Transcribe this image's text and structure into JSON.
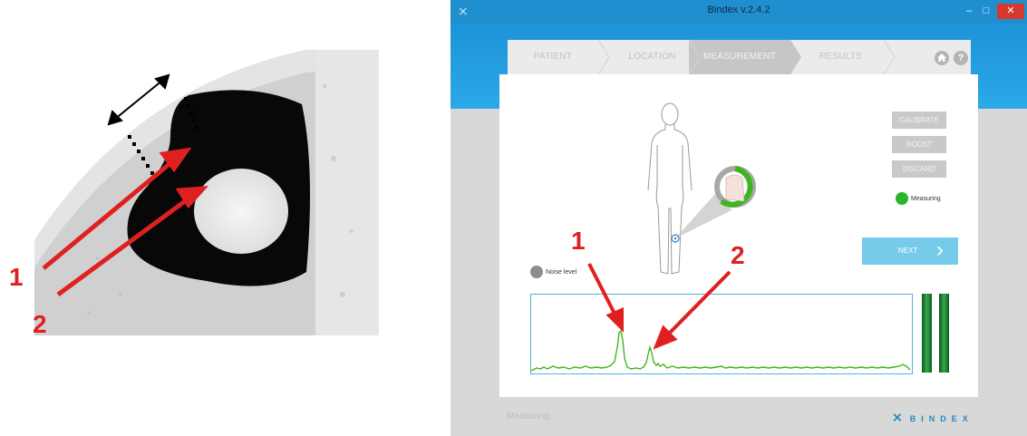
{
  "figure": {
    "label_1": "1",
    "label_2": "2"
  },
  "window": {
    "title": "Bindex v.2.4.2",
    "min_glyph": "–",
    "max_glyph": "□",
    "close_glyph": "✕"
  },
  "steps": [
    "PATIENT",
    "LOCATION",
    "MEASUREMENT",
    "RESULTS"
  ],
  "active_step": "MEASUREMENT",
  "toolbar": {
    "home_icon": "home-icon",
    "help_glyph": "?"
  },
  "buttons": {
    "calibrate": "CALIBRATE",
    "boost": "BOOST",
    "discard": "DISCARD",
    "next": "NEXT",
    "next_chevron": "›"
  },
  "status": {
    "measuring_label": "Measuring",
    "measuring_color": "#2bb52b",
    "noise_label": "Noise level",
    "noise_color": "#8d8d8d",
    "footer_text": "Measuring..."
  },
  "annotations": {
    "peak_1": "1",
    "peak_2": "2"
  },
  "logo": {
    "text": "BINDEX",
    "mark": "⨯"
  },
  "colors": {
    "title_bar": "#1f8fcf",
    "accent": "#2aa9e8",
    "signal": "#3fb81a",
    "annotation": "#e02020"
  }
}
